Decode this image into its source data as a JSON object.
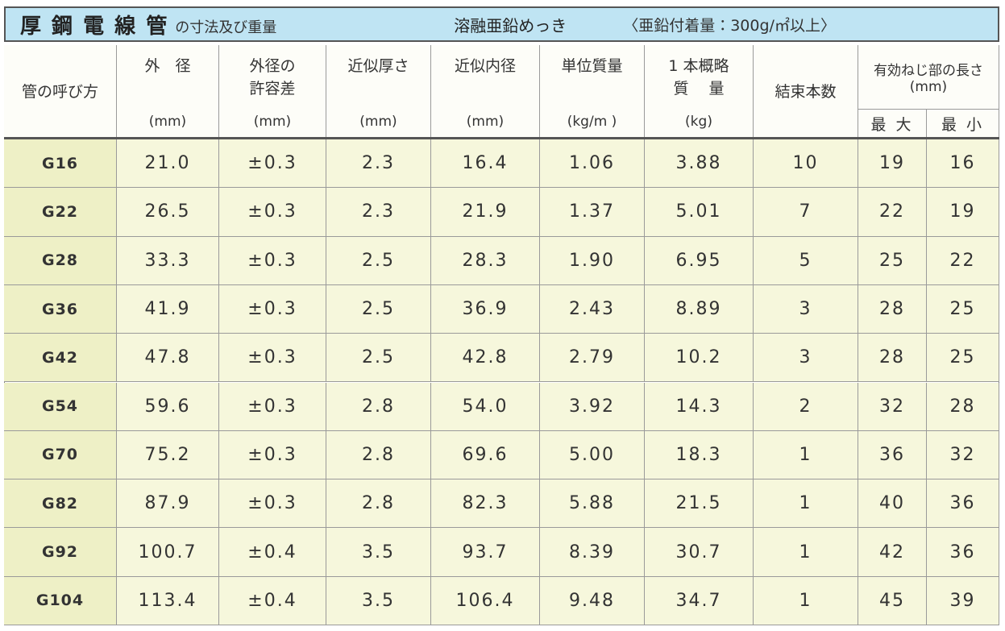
{
  "header": {
    "title": "厚 鋼 電 線 管",
    "subtitle": "の寸法及び重量",
    "finish": "溶融亜鉛めっき",
    "coating": "〈亜鉛付着量：300g/㎡以上〉"
  },
  "table": {
    "columns": [
      {
        "lines": [
          "管の呼び方"
        ]
      },
      {
        "lines": [
          "外　径"
        ],
        "unit": "(mm)"
      },
      {
        "lines": [
          "外径の",
          "許容差"
        ],
        "unit": "(mm)"
      },
      {
        "lines": [
          "近似厚さ"
        ],
        "unit": "(mm)"
      },
      {
        "lines": [
          "近似内径"
        ],
        "unit": "(mm)"
      },
      {
        "lines": [
          "単位質量"
        ],
        "unit": "(kg/m )"
      },
      {
        "lines": [
          "1 本概略",
          "質　 量"
        ],
        "unit": "(kg)"
      },
      {
        "lines": [
          "結束本数"
        ]
      },
      {
        "lines": [
          "有効ねじ部の長さ",
          "(mm)"
        ],
        "sub": [
          "最 大",
          "最 小"
        ]
      }
    ],
    "rows": [
      [
        "G16",
        "21.0",
        "±0.3",
        "2.3",
        "16.4",
        "1.06",
        "3.88",
        "10",
        "19",
        "16"
      ],
      [
        "G22",
        "26.5",
        "±0.3",
        "2.3",
        "21.9",
        "1.37",
        "5.01",
        "7",
        "22",
        "19"
      ],
      [
        "G28",
        "33.3",
        "±0.3",
        "2.5",
        "28.3",
        "1.90",
        "6.95",
        "5",
        "25",
        "22"
      ],
      [
        "G36",
        "41.9",
        "±0.3",
        "2.5",
        "36.9",
        "2.43",
        "8.89",
        "3",
        "28",
        "25"
      ],
      [
        "G42",
        "47.8",
        "±0.3",
        "2.5",
        "42.8",
        "2.79",
        "10.2",
        "3",
        "28",
        "25"
      ],
      [
        "G54",
        "59.6",
        "±0.3",
        "2.8",
        "54.0",
        "3.92",
        "14.3",
        "2",
        "32",
        "28"
      ],
      [
        "G70",
        "75.2",
        "±0.3",
        "2.8",
        "69.6",
        "5.00",
        "18.3",
        "1",
        "36",
        "32"
      ],
      [
        "G82",
        "87.9",
        "±0.3",
        "2.8",
        "82.3",
        "5.88",
        "21.5",
        "1",
        "40",
        "36"
      ],
      [
        "G92",
        "100.7",
        "±0.4",
        "3.5",
        "93.7",
        "8.39",
        "30.7",
        "1",
        "42",
        "36"
      ],
      [
        "G104",
        "113.4",
        "±0.4",
        "3.5",
        "106.4",
        "9.48",
        "34.7",
        "1",
        "45",
        "39"
      ]
    ]
  }
}
